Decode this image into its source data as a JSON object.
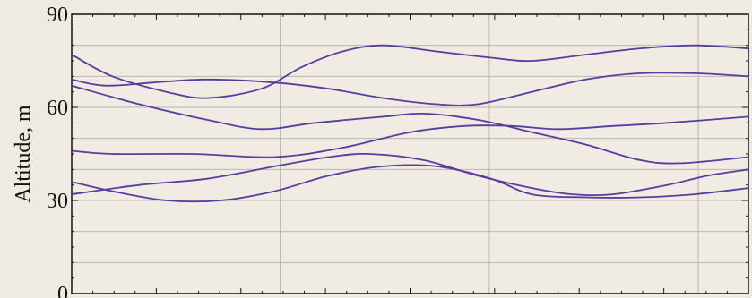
{
  "chart_data": {
    "type": "line",
    "title": "",
    "xlabel": "",
    "ylabel": "Altitude,  m",
    "ylim": [
      0,
      90
    ],
    "xlim": [
      0,
      1
    ],
    "yticks": [
      0,
      30,
      60,
      90
    ],
    "ytick_labels": [
      "0",
      "30",
      "60",
      "90"
    ],
    "minor_y_gridlines": [
      10,
      20,
      40,
      50,
      70,
      80
    ],
    "x_gridlines": [
      0.308,
      0.617,
      0.926
    ],
    "grid": true,
    "legend": "none",
    "line_color": "#5b3aa0",
    "series": [
      {
        "values": [
          [
            0.0,
            46
          ],
          [
            0.06,
            45
          ],
          [
            0.18,
            45
          ],
          [
            0.3,
            44
          ],
          [
            0.4,
            47
          ],
          [
            0.5,
            52
          ],
          [
            0.58,
            54
          ],
          [
            0.65,
            54
          ],
          [
            0.72,
            53
          ],
          [
            0.8,
            54
          ],
          [
            0.88,
            55
          ],
          [
            1.0,
            57
          ]
        ]
      },
      {
        "values": [
          [
            0.0,
            67
          ],
          [
            0.1,
            61
          ],
          [
            0.2,
            56
          ],
          [
            0.28,
            53
          ],
          [
            0.36,
            55
          ],
          [
            0.46,
            57
          ],
          [
            0.52,
            58
          ],
          [
            0.6,
            56
          ],
          [
            0.68,
            52
          ],
          [
            0.76,
            48
          ],
          [
            0.84,
            43
          ],
          [
            0.9,
            42
          ],
          [
            1.0,
            44
          ]
        ]
      },
      {
        "values": [
          [
            0.0,
            69
          ],
          [
            0.05,
            67
          ],
          [
            0.12,
            68
          ],
          [
            0.2,
            69
          ],
          [
            0.3,
            68
          ],
          [
            0.38,
            66
          ],
          [
            0.46,
            63
          ],
          [
            0.54,
            61
          ],
          [
            0.6,
            61
          ],
          [
            0.68,
            65
          ],
          [
            0.76,
            69
          ],
          [
            0.84,
            71
          ],
          [
            0.92,
            71
          ],
          [
            1.0,
            70
          ]
        ]
      },
      {
        "values": [
          [
            0.0,
            77
          ],
          [
            0.06,
            70
          ],
          [
            0.14,
            65
          ],
          [
            0.2,
            63
          ],
          [
            0.28,
            66
          ],
          [
            0.34,
            73
          ],
          [
            0.4,
            78
          ],
          [
            0.46,
            80
          ],
          [
            0.54,
            78
          ],
          [
            0.62,
            76
          ],
          [
            0.68,
            75
          ],
          [
            0.76,
            77
          ],
          [
            0.84,
            79
          ],
          [
            0.92,
            80
          ],
          [
            1.0,
            79
          ]
        ]
      },
      {
        "values": [
          [
            0.0,
            32
          ],
          [
            0.1,
            35
          ],
          [
            0.2,
            37
          ],
          [
            0.3,
            41
          ],
          [
            0.38,
            44
          ],
          [
            0.44,
            45
          ],
          [
            0.52,
            43
          ],
          [
            0.6,
            38
          ],
          [
            0.68,
            34
          ],
          [
            0.74,
            32
          ],
          [
            0.8,
            32
          ],
          [
            0.88,
            35
          ],
          [
            0.94,
            38
          ],
          [
            1.0,
            40
          ]
        ]
      },
      {
        "values": [
          [
            0.0,
            36
          ],
          [
            0.06,
            33
          ],
          [
            0.14,
            30
          ],
          [
            0.22,
            30
          ],
          [
            0.3,
            33
          ],
          [
            0.38,
            38
          ],
          [
            0.46,
            41
          ],
          [
            0.54,
            41
          ],
          [
            0.62,
            37
          ],
          [
            0.68,
            32
          ],
          [
            0.76,
            31
          ],
          [
            0.84,
            31
          ],
          [
            0.92,
            32
          ],
          [
            1.0,
            34
          ]
        ]
      }
    ]
  }
}
